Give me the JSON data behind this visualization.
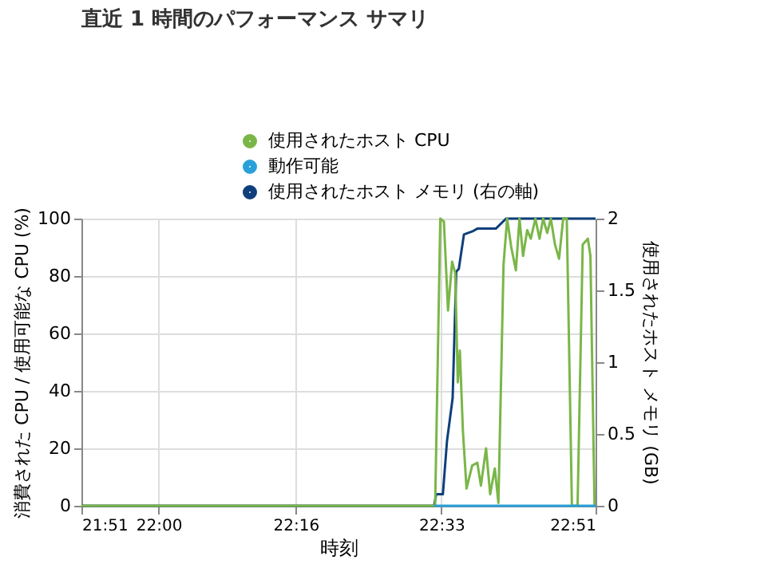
{
  "chart_data": {
    "type": "line",
    "title": "直近 1 時間のパフォーマンス サマリ",
    "xlabel": "時刻",
    "ylabel": "消費された CPU / 使用可能な CPU (%)",
    "y2label": "使用されたホスト メモリ (GB)",
    "xlim": [
      21.85,
      22.85
    ],
    "xticks": [
      {
        "value": 21.85,
        "label": "21:51"
      },
      {
        "value": 22.0,
        "label": "22:00"
      },
      {
        "value": 22.2667,
        "label": "22:16"
      },
      {
        "value": 22.55,
        "label": "22:33"
      },
      {
        "value": 22.85,
        "label": "22:51"
      }
    ],
    "ylim": [
      0,
      100
    ],
    "yticks": [
      0,
      20,
      40,
      60,
      80,
      100
    ],
    "y2lim": [
      0,
      2
    ],
    "y2ticks": [
      0,
      0.5,
      1,
      1.5,
      2
    ],
    "grid": true,
    "legend": "top",
    "series": [
      {
        "name": "使用されたホスト CPU",
        "color": "#7ab648",
        "x": [
          21.85,
          22.538,
          22.548,
          22.555,
          22.563,
          22.571,
          22.577,
          22.582,
          22.586,
          22.592,
          22.599,
          22.61,
          22.62,
          22.627,
          22.637,
          22.645,
          22.654,
          22.661,
          22.671,
          22.678,
          22.686,
          22.695,
          22.702,
          22.709,
          22.717,
          22.724,
          22.733,
          22.741,
          22.748,
          22.756,
          22.763,
          22.771,
          22.779,
          22.787,
          22.794,
          22.804,
          22.815,
          22.825,
          22.835,
          22.84,
          22.848
        ],
        "values": [
          0,
          0,
          100,
          99,
          68,
          85,
          81,
          43,
          54,
          26,
          6,
          14,
          15,
          7,
          20,
          4,
          13,
          1,
          84,
          100,
          90,
          82,
          100,
          87,
          96,
          93,
          100,
          93,
          100,
          95,
          100,
          91,
          86,
          100,
          100,
          0,
          0,
          91,
          93,
          87,
          0
        ]
      },
      {
        "name": "動作可能",
        "color": "#29a0d8",
        "x": [
          22.536,
          22.85
        ],
        "values": [
          0,
          0
        ]
      },
      {
        "name": "使用されたホスト メモリ (右の軸)",
        "color": "#0e3f7a",
        "axis": "y2",
        "x": [
          21.85,
          22.536,
          22.54,
          22.553,
          22.561,
          22.572,
          22.579,
          22.584,
          22.594,
          22.61,
          22.62,
          22.656,
          22.676,
          22.85
        ],
        "values": [
          0,
          0,
          0.08,
          0.08,
          0.45,
          0.75,
          1.63,
          1.65,
          1.89,
          1.91,
          1.93,
          1.93,
          2.0,
          2.0
        ]
      }
    ]
  }
}
